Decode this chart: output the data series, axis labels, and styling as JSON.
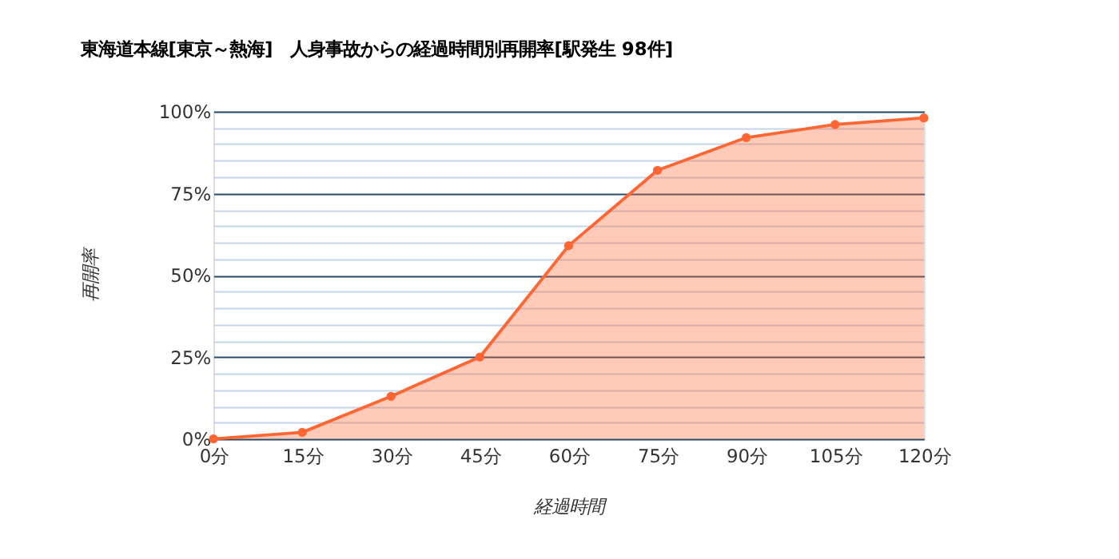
{
  "chart_data": {
    "type": "area",
    "title": "東海道本線[東京～熱海]　人身事故からの経過時間別再開率[駅発生 98件]",
    "xlabel": "経過時間",
    "ylabel": "再開率",
    "categories": [
      "0分",
      "15分",
      "30分",
      "45分",
      "60分",
      "75分",
      "90分",
      "105分",
      "120分"
    ],
    "series": [
      {
        "color": "#ff6633",
        "values": [
          0,
          2,
          13,
          25,
          59,
          82,
          92,
          96,
          98
        ]
      }
    ],
    "ylim": [
      0,
      100
    ],
    "yticks": [
      {
        "value": 0,
        "label": "0%"
      },
      {
        "value": 5,
        "label": null
      },
      {
        "value": 10,
        "label": null
      },
      {
        "value": 15,
        "label": null
      },
      {
        "value": 20,
        "label": null
      },
      {
        "value": 25,
        "label": "25%"
      },
      {
        "value": 30,
        "label": null
      },
      {
        "value": 35,
        "label": null
      },
      {
        "value": 40,
        "label": null
      },
      {
        "value": 45,
        "label": null
      },
      {
        "value": 50,
        "label": "50%"
      },
      {
        "value": 55,
        "label": null
      },
      {
        "value": 60,
        "label": null
      },
      {
        "value": 65,
        "label": null
      },
      {
        "value": 70,
        "label": null
      },
      {
        "value": 75,
        "label": "75%"
      },
      {
        "value": 80,
        "label": null
      },
      {
        "value": 85,
        "label": null
      },
      {
        "value": 90,
        "label": null
      },
      {
        "value": 95,
        "label": null
      },
      {
        "value": 100,
        "label": "100%"
      }
    ],
    "grid": "y",
    "marker": "circle",
    "line_style": "solid"
  }
}
